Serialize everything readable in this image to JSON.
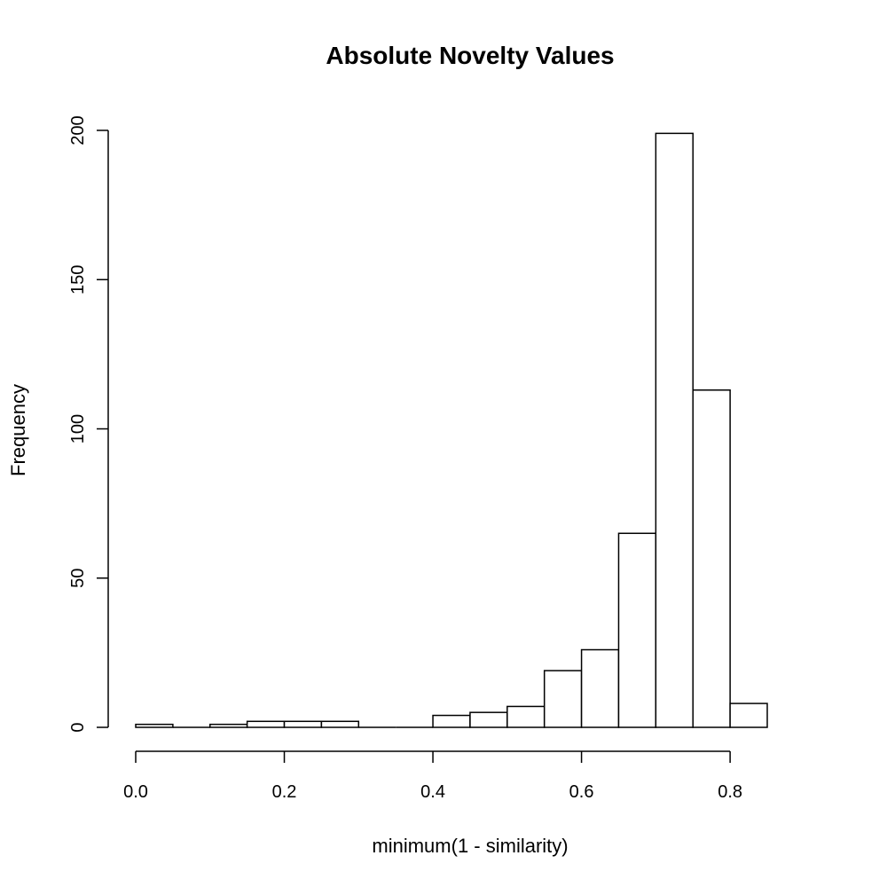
{
  "chart_data": {
    "type": "bar",
    "title": "Absolute Novelty Values",
    "xlabel": "minimum(1 - similarity)",
    "ylabel": "Frequency",
    "bin_width": 0.05,
    "bins": [
      {
        "start": 0.0,
        "end": 0.05,
        "count": 1
      },
      {
        "start": 0.05,
        "end": 0.1,
        "count": 0
      },
      {
        "start": 0.1,
        "end": 0.15,
        "count": 1
      },
      {
        "start": 0.15,
        "end": 0.2,
        "count": 2
      },
      {
        "start": 0.2,
        "end": 0.25,
        "count": 2
      },
      {
        "start": 0.25,
        "end": 0.3,
        "count": 2
      },
      {
        "start": 0.3,
        "end": 0.35,
        "count": 0
      },
      {
        "start": 0.35,
        "end": 0.4,
        "count": 0
      },
      {
        "start": 0.4,
        "end": 0.45,
        "count": 4
      },
      {
        "start": 0.45,
        "end": 0.5,
        "count": 5
      },
      {
        "start": 0.5,
        "end": 0.55,
        "count": 7
      },
      {
        "start": 0.55,
        "end": 0.6,
        "count": 19
      },
      {
        "start": 0.6,
        "end": 0.65,
        "count": 26
      },
      {
        "start": 0.65,
        "end": 0.7,
        "count": 65
      },
      {
        "start": 0.7,
        "end": 0.75,
        "count": 199
      },
      {
        "start": 0.75,
        "end": 0.8,
        "count": 113
      },
      {
        "start": 0.8,
        "end": 0.85,
        "count": 8
      }
    ],
    "xlim": [
      0.0,
      0.85
    ],
    "ylim": [
      0,
      200
    ],
    "x_ticks": [
      0.0,
      0.2,
      0.4,
      0.6,
      0.8
    ],
    "x_tick_labels": [
      "0.0",
      "0.2",
      "0.4",
      "0.6",
      "0.8"
    ],
    "y_ticks": [
      0,
      50,
      100,
      150,
      200
    ],
    "y_tick_labels": [
      "0",
      "50",
      "100",
      "150",
      "200"
    ],
    "grid": false,
    "legend": "none"
  }
}
